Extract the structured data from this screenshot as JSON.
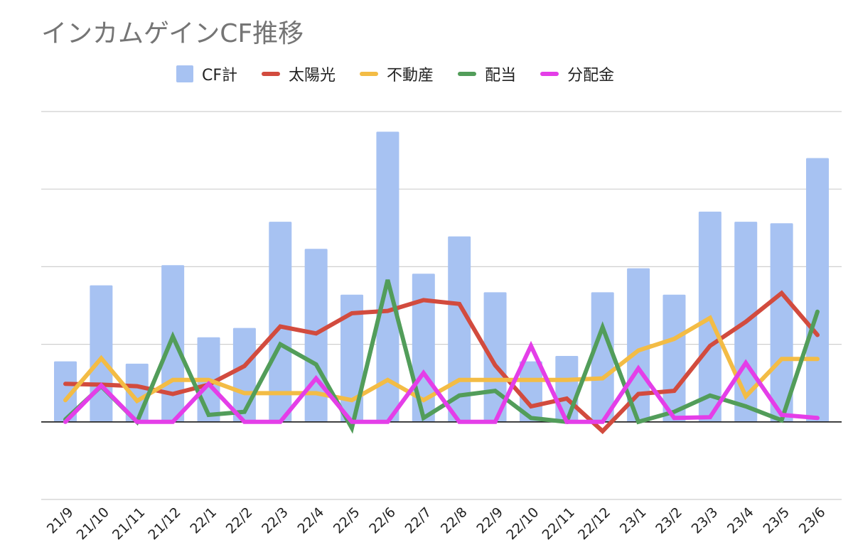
{
  "chart_data": {
    "type": "bar",
    "title": "インカムゲインCF推移",
    "categories": [
      "21/9",
      "21/10",
      "21/11",
      "21/12",
      "22/1",
      "22/2",
      "22/3",
      "22/4",
      "22/5",
      "22/6",
      "22/7",
      "22/8",
      "22/9",
      "22/10",
      "22/11",
      "22/12",
      "23/1",
      "23/2",
      "23/3",
      "23/4",
      "23/5",
      "23/6"
    ],
    "ylim": [
      -1.0,
      4.0
    ],
    "grid": true,
    "legend_position": "top",
    "series": [
      {
        "name": "CF計",
        "type": "bar",
        "color": "#a7c2f2",
        "values": [
          0.78,
          1.76,
          0.75,
          2.02,
          1.09,
          1.21,
          2.58,
          2.23,
          1.64,
          3.74,
          1.91,
          2.39,
          1.67,
          0.78,
          0.85,
          1.67,
          1.98,
          1.64,
          2.71,
          2.58,
          2.56,
          3.4
        ]
      },
      {
        "name": "太陽光",
        "type": "line",
        "color": "#d24b3e",
        "values": [
          0.49,
          0.48,
          0.46,
          0.36,
          0.48,
          0.72,
          1.23,
          1.14,
          1.4,
          1.43,
          1.57,
          1.52,
          0.73,
          0.2,
          0.3,
          -0.12,
          0.36,
          0.4,
          0.98,
          1.29,
          1.66,
          1.12
        ]
      },
      {
        "name": "不動産",
        "type": "line",
        "color": "#f3bc45",
        "values": [
          0.28,
          0.82,
          0.27,
          0.54,
          0.54,
          0.37,
          0.37,
          0.37,
          0.28,
          0.54,
          0.28,
          0.54,
          0.54,
          0.54,
          0.54,
          0.56,
          0.92,
          1.07,
          1.34,
          0.33,
          0.81,
          0.81
        ]
      },
      {
        "name": "配当",
        "type": "line",
        "color": "#529d5a",
        "values": [
          0.03,
          0.46,
          0.0,
          1.1,
          0.09,
          0.13,
          1.0,
          0.74,
          -0.08,
          1.83,
          0.05,
          0.34,
          0.4,
          0.05,
          0.0,
          1.22,
          0.0,
          0.13,
          0.34,
          0.2,
          0.02,
          1.42
        ]
      },
      {
        "name": "分配金",
        "type": "line",
        "color": "#e43ee8",
        "values": [
          0.0,
          0.47,
          0.0,
          0.0,
          0.49,
          0.0,
          0.0,
          0.56,
          0.0,
          0.0,
          0.63,
          0.0,
          0.0,
          0.98,
          0.0,
          0.0,
          0.69,
          0.05,
          0.06,
          0.76,
          0.09,
          0.05
        ]
      }
    ]
  }
}
